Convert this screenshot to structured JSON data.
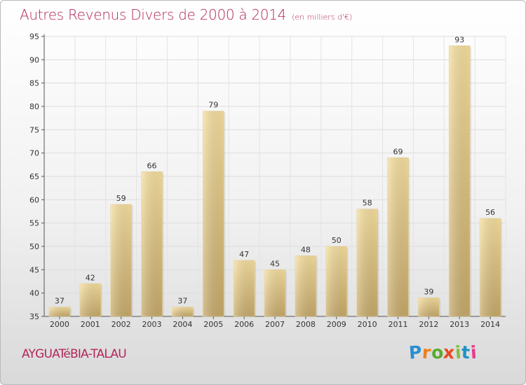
{
  "title": "Autres Revenus Divers de 2000 à 2014",
  "unit_note": "(en milliers d'€)",
  "commune": "AYGUATéBIA-TALAU",
  "logo": {
    "letters": [
      "P",
      "r",
      "o",
      "x",
      "i",
      "t",
      "i"
    ],
    "colors": [
      "#2a8fd3",
      "#ef7f1a",
      "#5aaa2f",
      "#e84a1f",
      "#7ec142",
      "#1e90c8",
      "#e63b8a"
    ]
  },
  "chart_data": {
    "type": "bar",
    "title": "Autres Revenus Divers de 2000 à 2014",
    "xlabel": "",
    "ylabel": "",
    "categories": [
      "2000",
      "2001",
      "2002",
      "2003",
      "2004",
      "2005",
      "2006",
      "2007",
      "2008",
      "2009",
      "2010",
      "2011",
      "2012",
      "2013",
      "2014"
    ],
    "values": [
      37,
      42,
      59,
      66,
      37,
      79,
      47,
      45,
      48,
      50,
      58,
      69,
      39,
      93,
      56
    ],
    "ylim": [
      35,
      95
    ],
    "yticks": [
      35,
      40,
      45,
      50,
      55,
      60,
      65,
      70,
      75,
      80,
      85,
      90,
      95
    ],
    "grid": true,
    "bar_color_light": "#f5dc9a",
    "bar_color_dark": "#c9ad6e"
  }
}
